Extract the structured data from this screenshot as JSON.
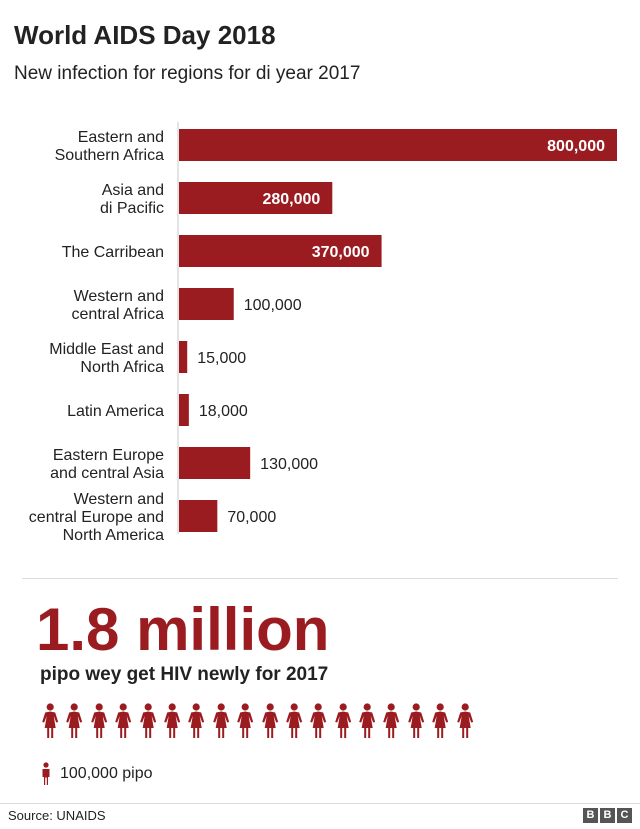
{
  "header": {
    "title": "World AIDS Day 2018",
    "subtitle": "New infection for regions for di year 2017"
  },
  "chart_data": {
    "type": "bar",
    "orientation": "horizontal",
    "title": "World AIDS Day 2018",
    "subtitle": "New infection for regions for di year 2017",
    "categories": [
      [
        "Eastern and",
        "Southern Africa"
      ],
      [
        "Asia and",
        "di Pacific"
      ],
      [
        "The Carribean"
      ],
      [
        "Western and",
        "central Africa"
      ],
      [
        "Middle East and",
        "North Africa"
      ],
      [
        "Latin America"
      ],
      [
        "Eastern Europe",
        "and central Asia"
      ],
      [
        "Western and",
        "central Europe and",
        "North America"
      ]
    ],
    "values": [
      800000,
      280000,
      370000,
      100000,
      15000,
      18000,
      130000,
      70000
    ],
    "value_labels": [
      "800,000",
      "280,000",
      "370,000",
      "100,000",
      "15,000",
      "18,000",
      "130,000",
      "70,000"
    ],
    "xlim": [
      0,
      800000
    ],
    "grid": false,
    "bar_color": "#9b1c20"
  },
  "summary": {
    "big_number": "1.8 million",
    "caption": "pipo wey get HIV newly for 2017",
    "icon_count": 18,
    "icon_name": "person-icon",
    "legend_label": "100,000 pipo"
  },
  "footer": {
    "source": "Source: UNAIDS",
    "logo_letters": [
      "B",
      "B",
      "C"
    ]
  },
  "colors": {
    "accent": "#9b1c20",
    "text": "#222222"
  }
}
